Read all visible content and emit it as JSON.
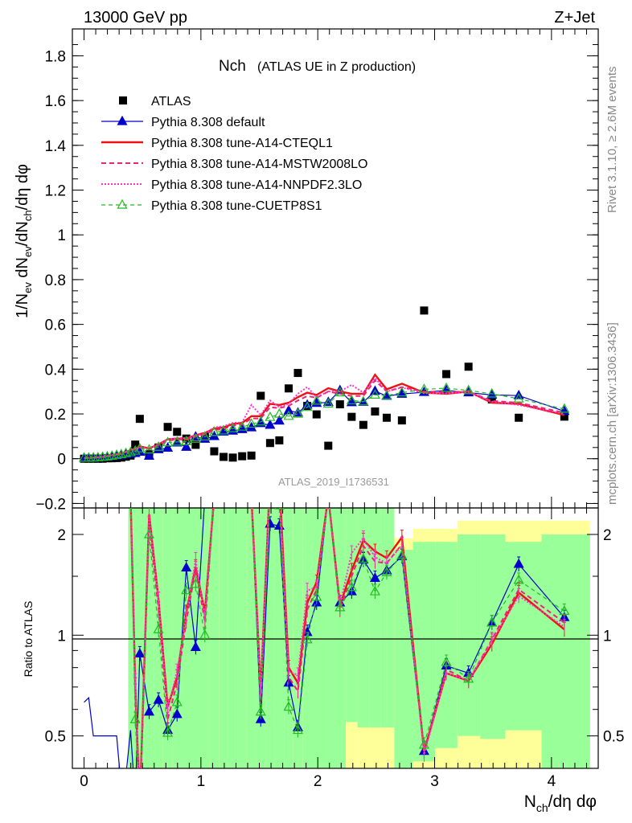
{
  "header": {
    "energy": "13000 GeV pp",
    "process": "Z+Jet"
  },
  "side_labels": {
    "rivet": "Rivet 3.1.10, ≥ 2.6M events",
    "site": "mcplots.cern.ch [arXiv:1306.3436]"
  },
  "plot": {
    "title_main": "Nch",
    "title_sub": "(ATLAS UE in Z production)",
    "analysis_id": "ATLAS_2019_I1736531",
    "ylabel_top": "1/N_ev dN_ev/dN_ch/dη dφ",
    "ylabel_ratio": "Ratio to ATLAS",
    "xlabel": "N_ch/dη dφ"
  },
  "chart_data": {
    "type": "scatter",
    "x": [
      0.0,
      0.0398,
      0.0796,
      0.119,
      0.159,
      0.199,
      0.239,
      0.279,
      0.318,
      0.358,
      0.398,
      0.438,
      0.477,
      0.557,
      0.637,
      0.716,
      0.796,
      0.875,
      0.955,
      1.034,
      1.114,
      1.194,
      1.273,
      1.353,
      1.432,
      1.512,
      1.592,
      1.671,
      1.751,
      1.83,
      1.91,
      1.99,
      2.09,
      2.19,
      2.29,
      2.39,
      2.49,
      2.59,
      2.72,
      2.91,
      3.1,
      3.29,
      3.49,
      3.72,
      4.11
    ],
    "xlim": [
      -0.1,
      4.4
    ],
    "ylim": [
      -0.22,
      1.92
    ],
    "ratio_ylim": [
      0.4,
      2.4
    ],
    "x_ticks": [
      0,
      1,
      2,
      3,
      4
    ],
    "y_ticks": [
      -0.2,
      0,
      0.2,
      0.4,
      0.6,
      0.8,
      1,
      1.2,
      1.4,
      1.6,
      1.8
    ],
    "ratio_ticks": [
      0.5,
      1,
      2
    ],
    "series": [
      {
        "name": "ATLAS",
        "color": "#000000",
        "style": "data",
        "values": [
          0.0,
          0.0,
          0.0,
          0.0,
          0.0,
          0.002,
          0.002,
          0.003,
          0.005,
          0.009,
          0.014,
          0.063,
          0.178,
          0.02,
          0.05,
          0.142,
          0.12,
          0.09,
          0.062,
          0.098,
          0.033,
          0.008,
          0.005,
          0.011,
          0.014,
          0.281,
          0.07,
          0.082,
          0.314,
          0.383,
          0.236,
          0.198,
          0.058,
          0.243,
          0.187,
          0.151,
          0.211,
          0.183,
          0.171,
          0.662,
          0.378,
          0.411,
          0.265,
          0.183,
          0.188
        ]
      },
      {
        "name": "Pythia 8.308 default",
        "color": "#0000cc",
        "style": "solid-tri",
        "values": [
          0.003,
          0.003,
          0.003,
          0.004,
          0.006,
          0.008,
          0.01,
          0.013,
          0.016,
          0.019,
          0.022,
          0.024,
          0.03,
          0.012,
          0.041,
          0.048,
          0.071,
          0.052,
          0.098,
          0.088,
          0.1,
          0.12,
          0.124,
          0.131,
          0.139,
          0.158,
          0.15,
          0.169,
          0.215,
          0.205,
          0.24,
          0.248,
          0.252,
          0.305,
          0.251,
          0.253,
          0.302,
          0.28,
          0.289,
          0.297,
          0.305,
          0.295,
          0.285,
          0.282,
          0.212
        ]
      },
      {
        "name": "Pythia 8.308 tune-A14-CTEQL1",
        "color": "#ee1111",
        "style": "thick-solid",
        "values": [
          0.003,
          0.004,
          0.005,
          0.007,
          0.008,
          0.012,
          0.016,
          0.02,
          0.025,
          0.03,
          0.038,
          0.045,
          0.055,
          0.046,
          0.064,
          0.087,
          0.09,
          0.09,
          0.105,
          0.115,
          0.135,
          0.14,
          0.155,
          0.16,
          0.19,
          0.19,
          0.245,
          0.24,
          0.25,
          0.275,
          0.295,
          0.285,
          0.315,
          0.3,
          0.29,
          0.29,
          0.375,
          0.31,
          0.335,
          0.295,
          0.29,
          0.3,
          0.25,
          0.245,
          0.195
        ]
      },
      {
        "name": "Pythia 8.308 tune-A14-MSTW2008LO",
        "color": "#ee2277",
        "style": "dashed",
        "values": [
          0.003,
          0.004,
          0.005,
          0.006,
          0.008,
          0.011,
          0.015,
          0.019,
          0.024,
          0.029,
          0.035,
          0.043,
          0.05,
          0.043,
          0.06,
          0.08,
          0.086,
          0.085,
          0.098,
          0.108,
          0.128,
          0.133,
          0.148,
          0.152,
          0.18,
          0.18,
          0.23,
          0.226,
          0.236,
          0.26,
          0.28,
          0.272,
          0.3,
          0.29,
          0.28,
          0.28,
          0.35,
          0.3,
          0.32,
          0.3,
          0.298,
          0.3,
          0.258,
          0.25,
          0.205
        ]
      },
      {
        "name": "Pythia 8.308 tune-A14-NNPDF2.3LO",
        "color": "#ff33cc",
        "style": "dotted",
        "values": [
          0.003,
          0.004,
          0.005,
          0.006,
          0.009,
          0.012,
          0.016,
          0.02,
          0.025,
          0.031,
          0.038,
          0.046,
          0.052,
          0.046,
          0.064,
          0.086,
          0.093,
          0.092,
          0.104,
          0.112,
          0.14,
          0.145,
          0.16,
          0.162,
          0.24,
          0.195,
          0.26,
          0.23,
          0.245,
          0.29,
          0.32,
          0.275,
          0.3,
          0.3,
          0.33,
          0.295,
          0.36,
          0.3,
          0.318,
          0.292,
          0.292,
          0.298,
          0.255,
          0.24,
          0.2
        ]
      },
      {
        "name": "Pythia 8.308 tune-CUETP8S1",
        "color": "#22bb22",
        "style": "dashed-tri",
        "values": [
          0.003,
          0.003,
          0.004,
          0.005,
          0.007,
          0.009,
          0.012,
          0.016,
          0.019,
          0.024,
          0.028,
          0.035,
          0.045,
          0.04,
          0.052,
          0.072,
          0.075,
          0.077,
          0.088,
          0.098,
          0.118,
          0.125,
          0.135,
          0.142,
          0.155,
          0.165,
          0.185,
          0.2,
          0.19,
          0.2,
          0.23,
          0.258,
          0.245,
          0.295,
          0.26,
          0.255,
          0.285,
          0.282,
          0.295,
          0.31,
          0.315,
          0.305,
          0.29,
          0.268,
          0.222
        ]
      }
    ],
    "ratio": {
      "default": [
        0.63,
        0.65,
        0.5,
        0.5,
        0.5,
        0.5,
        0.5,
        0.5,
        0.35,
        0.38,
        0.52,
        0.32,
        0.88,
        0.59,
        0.64,
        0.52,
        0.58,
        1.59,
        0.92,
        2.6,
        2.6,
        2.6,
        2.6,
        2.6,
        2.6,
        0.56,
        2.15,
        2.12,
        0.72,
        0.53,
        1.02,
        1.25,
        2.6,
        1.25,
        1.35,
        1.68,
        1.48,
        1.56,
        1.72,
        0.45,
        0.81,
        0.77,
        1.09,
        1.63,
        1.13
      ],
      "cteql1": [
        2.6,
        2.6,
        2.6,
        2.6,
        2.6,
        2.6,
        2.6,
        2.6,
        2.6,
        2.6,
        2.6,
        0.71,
        0.31,
        2.3,
        1.28,
        0.61,
        0.75,
        1.17,
        1.6,
        1.17,
        2.6,
        2.6,
        2.6,
        2.6,
        2.6,
        0.68,
        3.5,
        2.93,
        0.8,
        0.72,
        1.25,
        1.44,
        2.6,
        1.23,
        1.56,
        1.92,
        1.78,
        1.7,
        1.96,
        0.45,
        0.77,
        0.73,
        0.94,
        1.34,
        1.04
      ],
      "mstw": [
        2.6,
        2.6,
        2.6,
        2.6,
        2.6,
        2.6,
        2.6,
        2.6,
        2.6,
        2.6,
        2.6,
        0.68,
        0.28,
        2.15,
        1.2,
        0.56,
        0.72,
        1.1,
        1.58,
        1.1,
        2.6,
        2.6,
        2.6,
        2.6,
        2.6,
        0.64,
        3.29,
        2.76,
        0.75,
        0.68,
        1.19,
        1.37,
        2.6,
        1.19,
        1.5,
        1.85,
        1.66,
        1.64,
        1.87,
        0.45,
        0.79,
        0.73,
        0.97,
        1.37,
        1.09
      ],
      "nnpdf": [
        2.6,
        2.6,
        2.6,
        2.6,
        2.6,
        2.6,
        2.6,
        2.6,
        2.6,
        2.6,
        2.6,
        0.73,
        0.29,
        2.3,
        1.28,
        0.6,
        0.78,
        1.14,
        1.68,
        1.14,
        2.6,
        2.6,
        2.6,
        2.6,
        2.6,
        0.69,
        3.71,
        2.8,
        0.78,
        0.76,
        1.36,
        1.39,
        2.6,
        1.23,
        1.76,
        1.95,
        1.71,
        1.64,
        1.86,
        0.44,
        0.77,
        0.73,
        0.96,
        1.31,
        1.06
      ],
      "cuetp8s1": [
        2.6,
        2.6,
        2.6,
        2.6,
        2.6,
        2.6,
        2.6,
        2.6,
        2.6,
        2.6,
        2.6,
        0.56,
        0.25,
        2.0,
        1.04,
        0.51,
        0.63,
        1.36,
        1.42,
        1.0,
        2.6,
        2.6,
        2.6,
        2.6,
        2.6,
        0.59,
        2.64,
        2.44,
        0.61,
        0.52,
        0.97,
        1.3,
        2.6,
        1.21,
        1.39,
        1.69,
        1.35,
        1.54,
        1.73,
        0.47,
        0.83,
        0.74,
        1.09,
        1.46,
        1.18
      ]
    },
    "legend_position": "top-left",
    "grid": false
  }
}
